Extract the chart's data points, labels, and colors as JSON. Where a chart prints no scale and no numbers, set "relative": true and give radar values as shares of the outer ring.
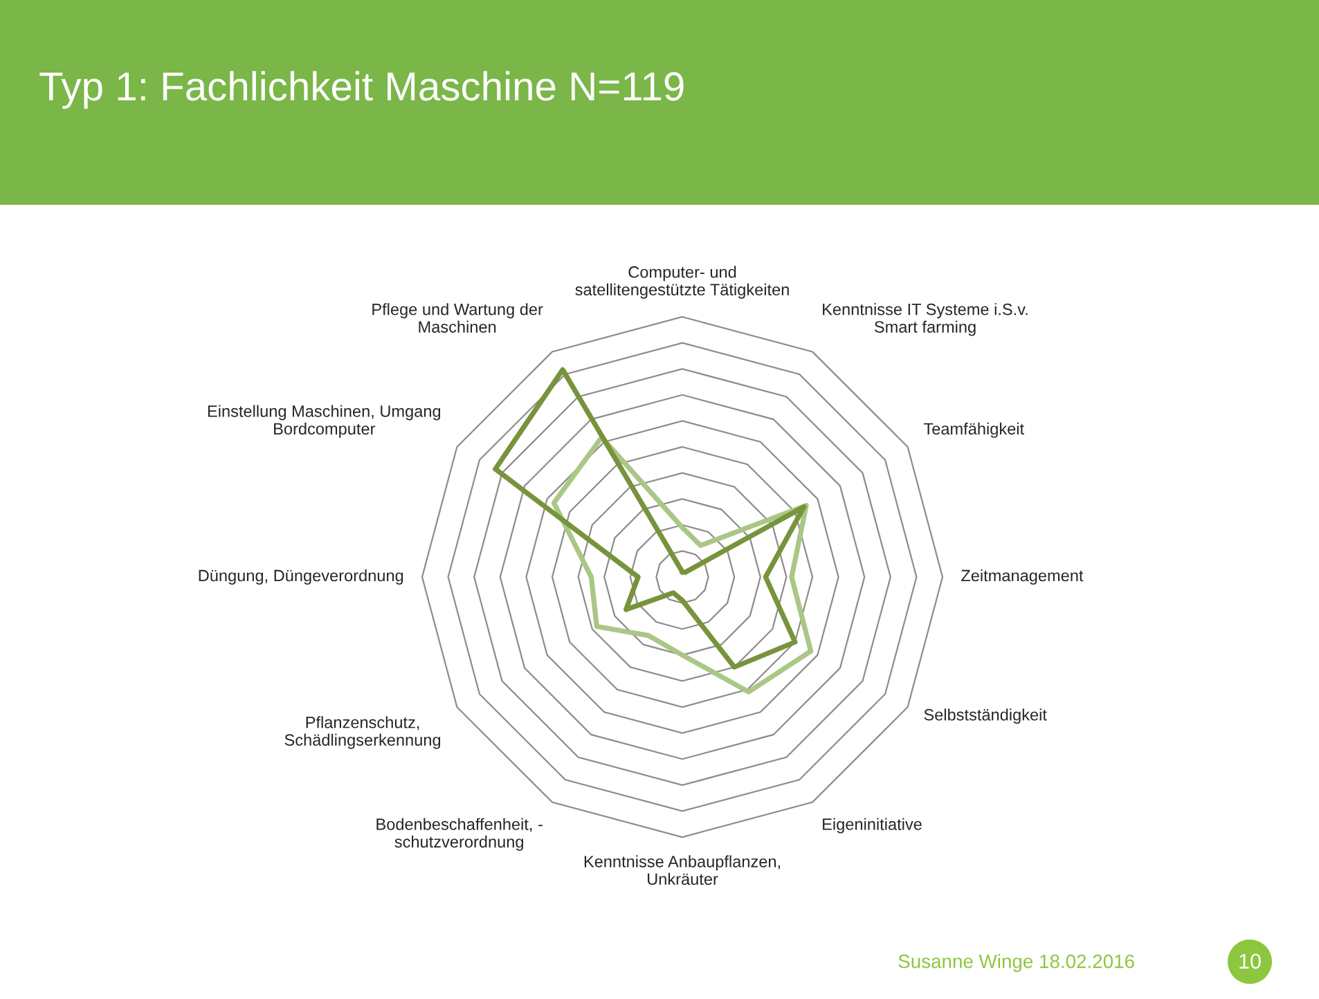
{
  "chart_data": {
    "type": "radar",
    "title": "Typ 1: Fachlichkeit Maschine N=119",
    "relative": true,
    "grid": true,
    "marker": "none",
    "line_style": "solid",
    "categories": [
      "Computer- und\nsatellitengestützte Tätigkeiten",
      "Kenntnisse IT Systeme i.S.v.\nSmart farming",
      "Teamfähigkeit",
      "Zeitmanagement",
      "Selbstständigkeit",
      "Eigeninitiative",
      "Kenntnisse Anbaupflanzen,\nUnkräuter",
      "Bodenbeschaffenheit, -\nschutzverordnung",
      "Pflanzenschutz,\nSchädlingserkennung",
      "Düngung, Düngeverordnung",
      "Einstellung Maschinen, Umgang\nBordcomputer",
      "Pflege und Wartung der\nMaschinen"
    ],
    "series": [
      {
        "color": "#aac786",
        "values": [
          0.19,
          0.14,
          0.55,
          0.42,
          0.57,
          0.51,
          0.3,
          0.26,
          0.38,
          0.35,
          0.57,
          0.62
        ]
      },
      {
        "color": "#77933c",
        "values": [
          0.02,
          0.02,
          0.54,
          0.32,
          0.5,
          0.4,
          0.09,
          0.07,
          0.25,
          0.17,
          0.83,
          0.92
        ]
      }
    ],
    "annotations": [
      "Susanne Winge 18.02.2016",
      "10"
    ]
  }
}
